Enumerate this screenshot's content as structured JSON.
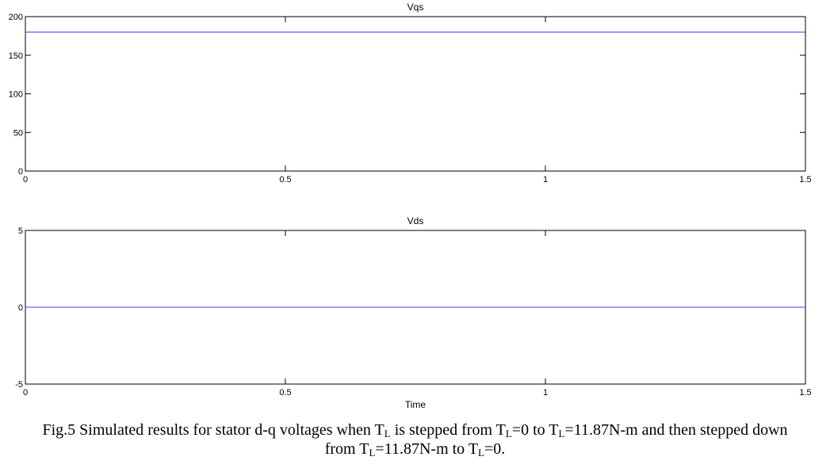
{
  "chart_data": [
    {
      "type": "line",
      "title": "Vqs",
      "xlabel": "",
      "ylabel": "",
      "xlim": [
        0,
        1.5
      ],
      "ylim": [
        0,
        200
      ],
      "xticks": [
        "0",
        "0.5",
        "1",
        "1.5"
      ],
      "yticks": [
        "0",
        "50",
        "100",
        "150",
        "200"
      ],
      "line_color": "#3f3fff",
      "series": [
        {
          "x": [
            0,
            1.5
          ],
          "y": [
            180,
            180
          ]
        }
      ]
    },
    {
      "type": "line",
      "title": "Vds",
      "xlabel": "Time",
      "ylabel": "",
      "xlim": [
        0,
        1.5
      ],
      "ylim": [
        -5,
        5
      ],
      "xticks": [
        "0",
        "0.5",
        "1",
        "1.5"
      ],
      "yticks": [
        "-5",
        "0",
        "5"
      ],
      "line_color": "#3f3fff",
      "series": [
        {
          "x": [
            0,
            1.5
          ],
          "y": [
            0,
            0
          ]
        }
      ]
    }
  ],
  "caption": {
    "part1": "Fig.5 Simulated results for stator d-q voltages when T",
    "sub1": "L",
    "part2": " is stepped from T",
    "sub2": "L",
    "part3": "=0 to T",
    "sub3": "L",
    "part4": "=11.87N-m and then stepped down",
    "part5": "from T",
    "sub5": "L",
    "part6": "=11.87N-m to T",
    "sub6": "L",
    "part7": "=0."
  }
}
